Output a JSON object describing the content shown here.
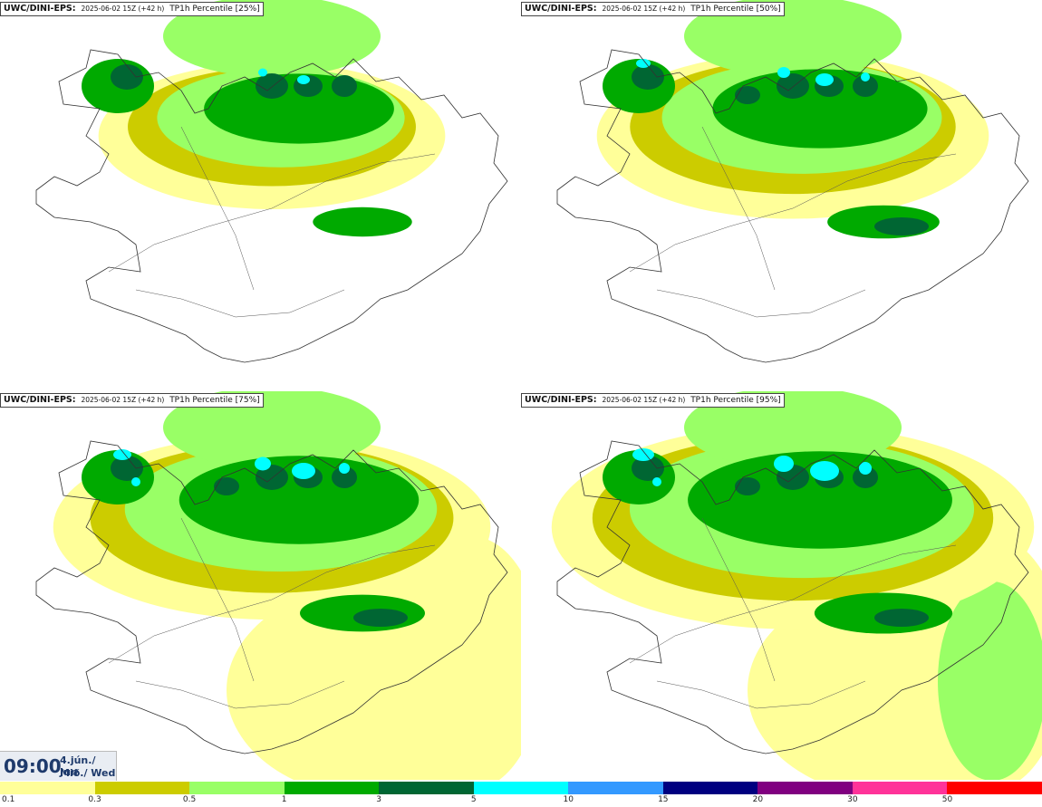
{
  "panels": [
    {
      "model": "UWC/DINI-EPS:",
      "run": "2025-06-02 15Z (+42 h)",
      "param": "TP1h Percentile [25%]",
      "level": 1
    },
    {
      "model": "UWC/DINI-EPS:",
      "run": "2025-06-02 15Z (+42 h)",
      "param": "TP1h Percentile [50%]",
      "level": 2
    },
    {
      "model": "UWC/DINI-EPS:",
      "run": "2025-06-02 15Z (+42 h)",
      "param": "TP1h Percentile [75%]",
      "level": 3
    },
    {
      "model": "UWC/DINI-EPS:",
      "run": "2025-06-02 15Z (+42 h)",
      "param": "TP1h Percentile [95%]",
      "level": 4
    }
  ],
  "valid_time": {
    "time": "09:00",
    "date_line1": "4.jún./ Jun",
    "date_line2": "Mið./ Wed"
  },
  "scale": {
    "labels": [
      "0.1",
      "0.3",
      "0.5",
      "1",
      "3",
      "5",
      "10",
      "15",
      "20",
      "30",
      "50"
    ],
    "colors": [
      "#ffff99",
      "#cccc00",
      "#99ff66",
      "#00aa00",
      "#006633",
      "#00ffff",
      "#3399ff",
      "#000080",
      "#800080",
      "#ff3399",
      "#ff0000"
    ]
  }
}
